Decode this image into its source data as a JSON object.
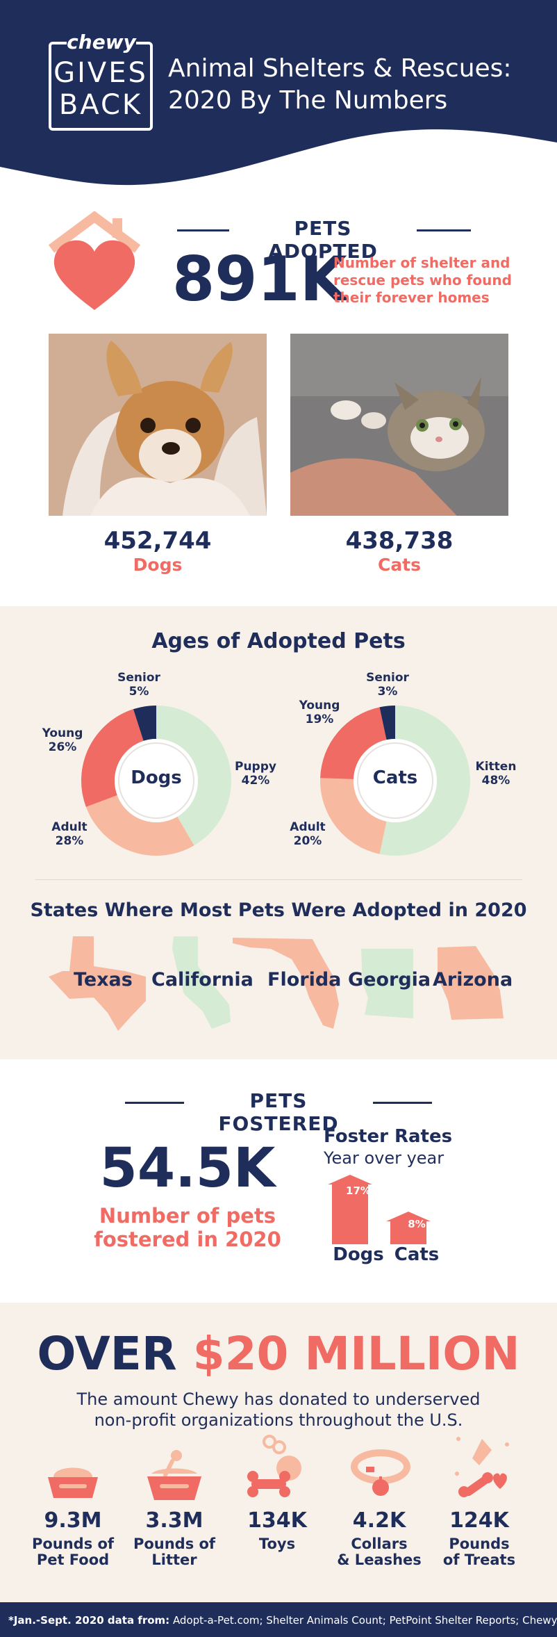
{
  "header": {
    "logo_brand": "chewy",
    "logo_line1": "GIVES",
    "logo_line2": "BACK",
    "title_line1": "Animal Shelters & Rescues:",
    "title_line2": "2020 By The Numbers"
  },
  "adopted": {
    "heading": "PETS ADOPTED",
    "total": "891K",
    "description": "Number of shelter and rescue pets who found their forever homes",
    "dogs_count": "452,744",
    "dogs_label": "Dogs",
    "cats_count": "438,738",
    "cats_label": "Cats"
  },
  "ages": {
    "heading": "Ages of Adopted Pets",
    "dogs": {
      "center": "Dogs",
      "segments": [
        {
          "name": "Puppy",
          "pct": "42%",
          "value": 42,
          "color": "#d6ebd3"
        },
        {
          "name": "Adult",
          "pct": "28%",
          "value": 28,
          "color": "#f7b9a0"
        },
        {
          "name": "Young",
          "pct": "26%",
          "value": 26,
          "color": "#ef6b63"
        },
        {
          "name": "Senior",
          "pct": "5%",
          "value": 5,
          "color": "#1f2d5a"
        }
      ]
    },
    "cats": {
      "center": "Cats",
      "segments": [
        {
          "name": "Kitten",
          "pct": "48%",
          "value": 48,
          "color": "#d6ebd3"
        },
        {
          "name": "Adult",
          "pct": "20%",
          "value": 20,
          "color": "#f7b9a0"
        },
        {
          "name": "Young",
          "pct": "19%",
          "value": 19,
          "color": "#ef6b63"
        },
        {
          "name": "Senior",
          "pct": "3%",
          "value": 3,
          "color": "#1f2d5a"
        }
      ]
    }
  },
  "states": {
    "heading": "States Where Most Pets Were Adopted in 2020",
    "items": [
      "Texas",
      "California",
      "Florida",
      "Georgia",
      "Arizona"
    ]
  },
  "fostered": {
    "heading": "PETS FOSTERED",
    "total": "54.5K",
    "description_line1": "Number of pets",
    "description_line2": "fostered in 2020",
    "rates_title": "Foster Rates",
    "rates_subtitle": "Year over year",
    "bars": [
      {
        "label": "Dogs",
        "pct": "17%",
        "value": 17
      },
      {
        "label": "Cats",
        "pct": "8%",
        "value": 8
      }
    ]
  },
  "donation": {
    "headline_over": "OVER",
    "headline_amount": "$20 MILLION",
    "description_line1": "The amount Chewy has donated to underserved",
    "description_line2": "non-profit organizations throughout the U.S.",
    "items": [
      {
        "icon": "pet-food-bowl-icon",
        "value": "9.3M",
        "label_line1": "Pounds of",
        "label_line2": "Pet Food"
      },
      {
        "icon": "litter-box-icon",
        "value": "3.3M",
        "label_line1": "Pounds of",
        "label_line2": "Litter"
      },
      {
        "icon": "toys-icon",
        "value": "134K",
        "label_line1": "Toys",
        "label_line2": ""
      },
      {
        "icon": "collar-icon",
        "value": "4.2K",
        "label_line1": "Collars",
        "label_line2": "& Leashes"
      },
      {
        "icon": "treats-icon",
        "value": "124K",
        "label_line1": "Pounds",
        "label_line2": "of Treats"
      }
    ]
  },
  "footer": {
    "source_prefix": "*Jan.-Sept. 2020 data from:",
    "sources": "Adopt-a-Pet.com; Shelter Animals Count; PetPoint Shelter Reports; Chewy.com"
  },
  "colors": {
    "navy": "#1f2d5a",
    "coral": "#ef6b63",
    "peach": "#f7b9a0",
    "mint": "#d6ebd3",
    "cream": "#f8f1ea"
  }
}
